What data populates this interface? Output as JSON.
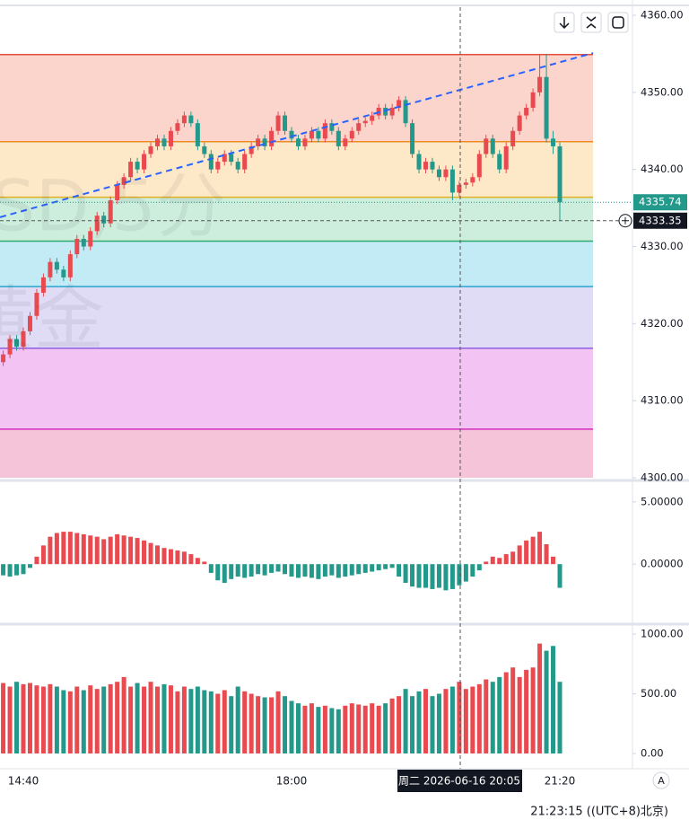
{
  "ui": {
    "clock": "21:23:15 ((UTC+8)北京)",
    "crosshair_label": "周二 2026-06-16 20:05",
    "watermark_symbol": "SD,5分",
    "watermark_name": "黄金",
    "scale_button": "A"
  },
  "chart_data": [
    {
      "type": "candlestick",
      "up_color": "#e84a4f",
      "down_color": "#22998a",
      "categories": [
        null,
        null,
        null,
        "14:40",
        null,
        null,
        null,
        null,
        null,
        null,
        null,
        null,
        null,
        null,
        null,
        null,
        null,
        null,
        null,
        null,
        null,
        null,
        null,
        null,
        null,
        null,
        null,
        null,
        null,
        null,
        null,
        null,
        null,
        null,
        null,
        null,
        null,
        null,
        null,
        null,
        null,
        null,
        null,
        "18:00",
        null,
        null,
        null,
        null,
        null,
        null,
        null,
        null,
        null,
        null,
        null,
        null,
        null,
        null,
        null,
        null,
        null,
        null,
        null,
        null,
        null,
        null,
        null,
        null,
        null,
        null,
        null,
        null,
        null,
        null,
        null,
        null,
        null,
        null,
        null,
        null,
        null,
        null,
        null,
        "21:20"
      ],
      "ohlc": [
        [
          4315,
          4316.5,
          4314.5,
          4316
        ],
        [
          4316,
          4318.5,
          4315.5,
          4318
        ],
        [
          4318,
          4318.5,
          4316.5,
          4317
        ],
        [
          4317,
          4319.5,
          4316.5,
          4319
        ],
        [
          4319,
          4321.5,
          4318.5,
          4321
        ],
        [
          4321,
          4324.5,
          4320.5,
          4324
        ],
        [
          4324,
          4326.5,
          4323.5,
          4326
        ],
        [
          4326,
          4328.5,
          4325.5,
          4328
        ],
        [
          4328,
          4328.5,
          4326.5,
          4327
        ],
        [
          4327,
          4327.5,
          4325.5,
          4326
        ],
        [
          4326,
          4329.5,
          4325.5,
          4329
        ],
        [
          4329,
          4331.5,
          4328.5,
          4331
        ],
        [
          4331,
          4331.5,
          4329.5,
          4330
        ],
        [
          4330,
          4332.5,
          4329.5,
          4332
        ],
        [
          4332,
          4334.5,
          4331.5,
          4334
        ],
        [
          4334,
          4334.5,
          4332.5,
          4333
        ],
        [
          4333,
          4336.5,
          4332.5,
          4336
        ],
        [
          4336,
          4338.5,
          4335.5,
          4338
        ],
        [
          4338,
          4339.5,
          4337.5,
          4339
        ],
        [
          4339,
          4341.5,
          4338.5,
          4341
        ],
        [
          4341,
          4341.5,
          4339.5,
          4340
        ],
        [
          4340,
          4342.5,
          4339.5,
          4342
        ],
        [
          4342,
          4343.5,
          4341.5,
          4343
        ],
        [
          4343,
          4344.5,
          4342.5,
          4344
        ],
        [
          4344,
          4344.5,
          4342.5,
          4343
        ],
        [
          4343,
          4345.5,
          4342.5,
          4345
        ],
        [
          4345,
          4346.5,
          4344.5,
          4346
        ],
        [
          4346,
          4347.5,
          4345.5,
          4347
        ],
        [
          4347,
          4347.5,
          4345.5,
          4346
        ],
        [
          4346,
          4346.5,
          4342.5,
          4343
        ],
        [
          4343,
          4343.5,
          4341.5,
          4342
        ],
        [
          4342,
          4342.5,
          4339.5,
          4340
        ],
        [
          4340,
          4341.5,
          4339.5,
          4341
        ],
        [
          4341,
          4342.5,
          4340.5,
          4342
        ],
        [
          4342,
          4342.5,
          4340.5,
          4341
        ],
        [
          4341,
          4341.5,
          4339.5,
          4340
        ],
        [
          4340,
          4342.5,
          4339.5,
          4342
        ],
        [
          4342,
          4343.5,
          4341.5,
          4343
        ],
        [
          4343,
          4344.5,
          4342.5,
          4344
        ],
        [
          4344,
          4344.5,
          4342.5,
          4343
        ],
        [
          4343,
          4345.5,
          4342.5,
          4345
        ],
        [
          4345,
          4347.5,
          4344.5,
          4347
        ],
        [
          4347,
          4347.5,
          4344.5,
          4345
        ],
        [
          4345,
          4345.5,
          4343.5,
          4344
        ],
        [
          4344,
          4344.5,
          4342.5,
          4343
        ],
        [
          4343,
          4344.5,
          4342.5,
          4344
        ],
        [
          4344,
          4345.5,
          4343.5,
          4345
        ],
        [
          4345,
          4345.5,
          4343.5,
          4344
        ],
        [
          4344,
          4346.5,
          4343.5,
          4346
        ],
        [
          4346,
          4346.5,
          4344.5,
          4345
        ],
        [
          4345,
          4345.5,
          4342.5,
          4343
        ],
        [
          4343,
          4344.5,
          4342.5,
          4344
        ],
        [
          4344,
          4345.5,
          4343.5,
          4345
        ],
        [
          4345,
          4346.5,
          4344.5,
          4346
        ],
        [
          4346,
          4346.8,
          4345.5,
          4346.3
        ],
        [
          4346.3,
          4347.5,
          4345.8,
          4347
        ],
        [
          4347,
          4348.5,
          4346.5,
          4348
        ],
        [
          4348,
          4348.5,
          4346.5,
          4347
        ],
        [
          4347,
          4348.5,
          4346.5,
          4348
        ],
        [
          4348,
          4349.5,
          4347.5,
          4349
        ],
        [
          4349,
          4349.5,
          4345.5,
          4346
        ],
        [
          4346,
          4346.5,
          4341.5,
          4342
        ],
        [
          4342,
          4342.5,
          4339.5,
          4340
        ],
        [
          4340,
          4341.5,
          4339.5,
          4341
        ],
        [
          4341,
          4341.5,
          4339.5,
          4340
        ],
        [
          4340,
          4340.5,
          4338.5,
          4339
        ],
        [
          4339,
          4340.5,
          4338.5,
          4340
        ],
        [
          4340,
          4340.5,
          4336,
          4337
        ],
        [
          4337,
          4338.5,
          4336.5,
          4338
        ],
        [
          4338,
          4338.8,
          4337.5,
          4338.3
        ],
        [
          4338.3,
          4339.5,
          4337.8,
          4339
        ],
        [
          4339,
          4342.5,
          4338.5,
          4342
        ],
        [
          4342,
          4344.5,
          4341.5,
          4344
        ],
        [
          4344,
          4344.5,
          4341.5,
          4342
        ],
        [
          4342,
          4342.5,
          4339.5,
          4340
        ],
        [
          4340,
          4343.5,
          4339.5,
          4343
        ],
        [
          4343,
          4345.5,
          4342.5,
          4345
        ],
        [
          4345,
          4347.5,
          4344.5,
          4347
        ],
        [
          4347,
          4348.5,
          4346.5,
          4348
        ],
        [
          4348,
          4350.5,
          4347.5,
          4350
        ],
        [
          4350,
          4355,
          4349.5,
          4352
        ],
        [
          4352,
          4355,
          4343.5,
          4344
        ],
        [
          4344,
          4345,
          4342,
          4343
        ],
        [
          4343,
          4343.5,
          4333.3,
          4335.74
        ]
      ],
      "ylim": [
        4300,
        4361.05
      ],
      "yticks": [
        {
          "value": 4300,
          "label": "4300.00"
        },
        {
          "value": 4310,
          "label": "4310.00"
        },
        {
          "value": 4320,
          "label": "4320.00"
        },
        {
          "value": 4330,
          "label": "4330.00"
        },
        {
          "value": 4340,
          "label": "4340.00"
        },
        {
          "value": 4350,
          "label": "4350.00"
        },
        {
          "value": 4360,
          "label": "4360.00"
        }
      ],
      "levels": [
        {
          "value": 4354.9,
          "color": "#e74c3c",
          "fill": "#fbd5cb"
        },
        {
          "value": 4343.6,
          "color": "#f08a24",
          "fill": "#fde8c8"
        },
        {
          "value": 4336.4,
          "color": "#e0b020",
          "fill": "#cdeedd"
        },
        {
          "value": 4330.7,
          "color": "#2fa872",
          "fill": "#c3ebf5"
        },
        {
          "value": 4324.8,
          "color": "#2aa6cf",
          "fill": "#e0dcf6"
        },
        {
          "value": 4316.8,
          "color": "#8e5de0",
          "fill": "#f2c3f3"
        },
        {
          "value": 4306.3,
          "color": "#d02cc0",
          "fill": "#f6c4d9"
        }
      ],
      "trendline": {
        "values": [
          4333.8,
          4355.1
        ],
        "color": "#2962ff"
      },
      "last_price": 4335.74,
      "crosshair_price": 4333.35
    },
    {
      "type": "bar",
      "up_color": "#e84a4f",
      "down_color": "#22998a",
      "values": [
        -0.9,
        -1.0,
        -0.9,
        -0.8,
        -0.3,
        0.6,
        1.5,
        2.2,
        2.5,
        2.6,
        2.6,
        2.5,
        2.4,
        2.3,
        2.2,
        2.0,
        2.2,
        2.4,
        2.3,
        2.2,
        2.1,
        1.9,
        1.7,
        1.5,
        1.3,
        1.2,
        1.1,
        1.0,
        0.8,
        0.5,
        0.2,
        -0.7,
        -1.3,
        -1.5,
        -1.2,
        -1.0,
        -1.1,
        -1.0,
        -0.8,
        -0.9,
        -0.7,
        -0.6,
        -0.8,
        -1.0,
        -1.1,
        -1.0,
        -1.1,
        -1.2,
        -1.0,
        -0.9,
        -1.1,
        -1.0,
        -0.9,
        -0.8,
        -0.7,
        -0.6,
        -0.5,
        -0.4,
        -0.3,
        -1.0,
        -1.5,
        -1.8,
        -1.9,
        -1.9,
        -2.0,
        -1.9,
        -2.1,
        -2.0,
        -1.7,
        -1.4,
        -1.0,
        -0.5,
        0.2,
        0.6,
        0.5,
        0.8,
        1.0,
        1.5,
        1.9,
        2.2,
        2.6,
        1.6,
        0.6,
        -1.9
      ],
      "ylim": [
        -4.6,
        6.5
      ],
      "yticks": [
        {
          "value": 0,
          "label": "0.00000"
        },
        {
          "value": 5,
          "label": "5.00000"
        }
      ]
    },
    {
      "type": "volume",
      "up_color": "#e84a4f",
      "down_color": "#22998a",
      "values": [
        590,
        560,
        600,
        580,
        590,
        570,
        560,
        580,
        560,
        530,
        520,
        560,
        530,
        570,
        540,
        560,
        580,
        600,
        640,
        560,
        590,
        560,
        600,
        560,
        580,
        570,
        520,
        560,
        540,
        560,
        530,
        520,
        500,
        530,
        480,
        560,
        520,
        500,
        480,
        470,
        470,
        520,
        480,
        440,
        420,
        400,
        420,
        390,
        400,
        380,
        370,
        400,
        420,
        410,
        400,
        420,
        400,
        420,
        460,
        480,
        540,
        480,
        520,
        540,
        480,
        500,
        540,
        560,
        600,
        540,
        560,
        580,
        620,
        600,
        640,
        680,
        720,
        640,
        700,
        720,
        920,
        860,
        900,
        600
      ],
      "ylim": [
        -120,
        1060
      ],
      "yticks": [
        {
          "value": 0,
          "label": "0.00"
        },
        {
          "value": 500,
          "label": "500.00"
        },
        {
          "value": 1000,
          "label": "1000.00"
        }
      ]
    }
  ]
}
